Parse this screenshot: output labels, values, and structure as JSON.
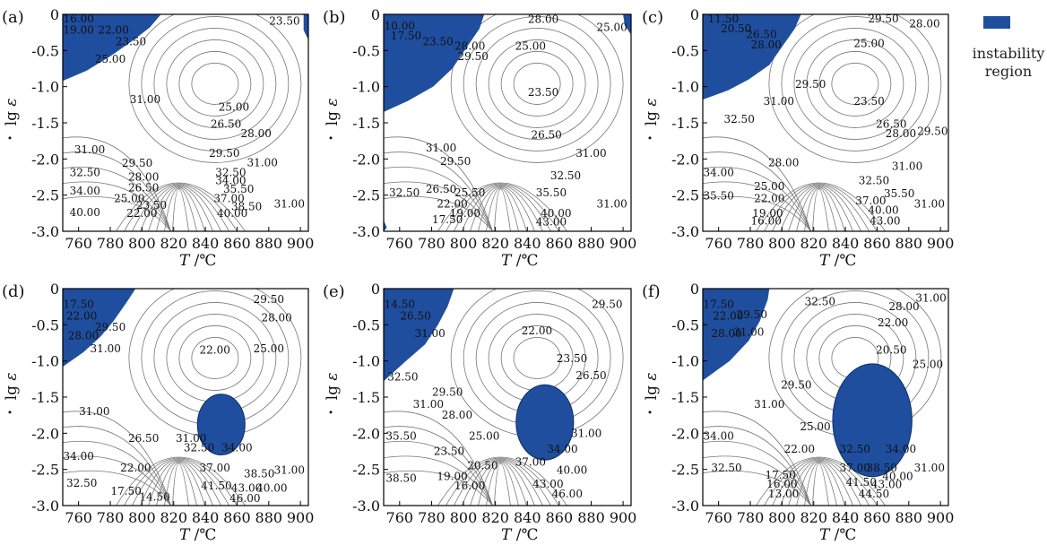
{
  "legend": {
    "label_line1": "instability",
    "label_line2": "region",
    "color": "#1f4e9e"
  },
  "axes": {
    "xlabel_T": "T",
    "xlabel_unit": "/℃",
    "ylabel_lg": "lg",
    "ylabel_symbol": "ε",
    "xticks": [
      "760",
      "780",
      "800",
      "820",
      "840",
      "860",
      "880",
      "900"
    ],
    "xtick_values": [
      760,
      780,
      800,
      820,
      840,
      860,
      880,
      900
    ],
    "yticks": [
      "0",
      "-0.5",
      "-1.0",
      "-1.5",
      "-2.0",
      "-2.5",
      "-3.0"
    ],
    "ytick_values": [
      0,
      -0.5,
      -1.0,
      -1.5,
      -2.0,
      -2.5,
      -3.0
    ],
    "xlim": [
      750,
      905
    ],
    "ylim": [
      -3.0,
      0.0
    ]
  },
  "chart_data": [
    {
      "type": "contour",
      "panel": "(a)",
      "xlim": [
        750,
        905
      ],
      "ylim": [
        -3.0,
        0.0
      ],
      "contour_labels": [
        {
          "text": "16.00",
          "x": 760,
          "y": -0.06
        },
        {
          "text": "19.00",
          "x": 760,
          "y": -0.22
        },
        {
          "text": "22.00",
          "x": 782,
          "y": -0.22
        },
        {
          "text": "23.50",
          "x": 793,
          "y": -0.38
        },
        {
          "text": "25.00",
          "x": 780,
          "y": -0.62
        },
        {
          "text": "23.50",
          "x": 890,
          "y": -0.09
        },
        {
          "text": "31.00",
          "x": 802,
          "y": -1.18
        },
        {
          "text": "25.00",
          "x": 858,
          "y": -1.28
        },
        {
          "text": "26.50",
          "x": 853,
          "y": -1.52
        },
        {
          "text": "28.00",
          "x": 872,
          "y": -1.65
        },
        {
          "text": "29.50",
          "x": 852,
          "y": -1.92
        },
        {
          "text": "31.00",
          "x": 876,
          "y": -2.05
        },
        {
          "text": "31.00",
          "x": 767,
          "y": -1.87
        },
        {
          "text": "29.50",
          "x": 797,
          "y": -2.06
        },
        {
          "text": "32.50",
          "x": 764,
          "y": -2.19
        },
        {
          "text": "28.00",
          "x": 801,
          "y": -2.25
        },
        {
          "text": "32.50",
          "x": 856,
          "y": -2.19
        },
        {
          "text": "34.00",
          "x": 764,
          "y": -2.44
        },
        {
          "text": "26.50",
          "x": 801,
          "y": -2.4
        },
        {
          "text": "34.00",
          "x": 856,
          "y": -2.3
        },
        {
          "text": "35.50",
          "x": 861,
          "y": -2.42
        },
        {
          "text": "25.00",
          "x": 792,
          "y": -2.55
        },
        {
          "text": "37.00",
          "x": 855,
          "y": -2.55
        },
        {
          "text": "23.50",
          "x": 806,
          "y": -2.64
        },
        {
          "text": "38.50",
          "x": 866,
          "y": -2.66
        },
        {
          "text": "31.00",
          "x": 893,
          "y": -2.62
        },
        {
          "text": "40.00",
          "x": 764,
          "y": -2.74
        },
        {
          "text": "22.00",
          "x": 800,
          "y": -2.75
        },
        {
          "text": "40.00",
          "x": 857,
          "y": -2.75
        }
      ]
    },
    {
      "type": "contour",
      "panel": "(b)",
      "xlim": [
        750,
        905
      ],
      "ylim": [
        -3.0,
        0.0
      ],
      "contour_labels": [
        {
          "text": "10.00",
          "x": 760,
          "y": -0.16
        },
        {
          "text": "17.50",
          "x": 764,
          "y": -0.3
        },
        {
          "text": "23.50",
          "x": 784,
          "y": -0.38
        },
        {
          "text": "28.00",
          "x": 804,
          "y": -0.44
        },
        {
          "text": "29.50",
          "x": 806,
          "y": -0.58
        },
        {
          "text": "28.00",
          "x": 850,
          "y": -0.07
        },
        {
          "text": "25.00",
          "x": 893,
          "y": -0.18
        },
        {
          "text": "25.00",
          "x": 842,
          "y": -0.44
        },
        {
          "text": "23.50",
          "x": 850,
          "y": -1.08
        },
        {
          "text": "26.50",
          "x": 852,
          "y": -1.67
        },
        {
          "text": "31.00",
          "x": 786,
          "y": -1.85
        },
        {
          "text": "31.00",
          "x": 880,
          "y": -1.92
        },
        {
          "text": "29.50",
          "x": 795,
          "y": -2.03
        },
        {
          "text": "32.50",
          "x": 864,
          "y": -2.23
        },
        {
          "text": "32.50",
          "x": 763,
          "y": -2.47
        },
        {
          "text": "26.50",
          "x": 786,
          "y": -2.42
        },
        {
          "text": "25.50",
          "x": 804,
          "y": -2.47
        },
        {
          "text": "35.50",
          "x": 855,
          "y": -2.47
        },
        {
          "text": "22.00",
          "x": 793,
          "y": -2.62
        },
        {
          "text": "31.00",
          "x": 893,
          "y": -2.62
        },
        {
          "text": "19.00",
          "x": 801,
          "y": -2.75
        },
        {
          "text": "40.00",
          "x": 858,
          "y": -2.75
        },
        {
          "text": "17.50",
          "x": 790,
          "y": -2.84
        },
        {
          "text": "43.00",
          "x": 855,
          "y": -2.87
        }
      ]
    },
    {
      "type": "contour",
      "panel": "(c)",
      "xlim": [
        750,
        905
      ],
      "ylim": [
        -3.0,
        0.0
      ],
      "contour_labels": [
        {
          "text": "11.50",
          "x": 763,
          "y": -0.06
        },
        {
          "text": "20.50",
          "x": 771,
          "y": -0.2
        },
        {
          "text": "26.50",
          "x": 787,
          "y": -0.28
        },
        {
          "text": "28.00",
          "x": 790,
          "y": -0.42
        },
        {
          "text": "29.50",
          "x": 864,
          "y": -0.06
        },
        {
          "text": "28.00",
          "x": 890,
          "y": -0.13
        },
        {
          "text": "25.00",
          "x": 855,
          "y": -0.4
        },
        {
          "text": "29.50",
          "x": 818,
          "y": -0.97
        },
        {
          "text": "31.00",
          "x": 798,
          "y": -1.2
        },
        {
          "text": "23.50",
          "x": 855,
          "y": -1.2
        },
        {
          "text": "32.50",
          "x": 773,
          "y": -1.45
        },
        {
          "text": "26.50",
          "x": 869,
          "y": -1.52
        },
        {
          "text": "28.00",
          "x": 875,
          "y": -1.65
        },
        {
          "text": "29.50",
          "x": 895,
          "y": -1.62
        },
        {
          "text": "28.00",
          "x": 801,
          "y": -2.05
        },
        {
          "text": "31.00",
          "x": 879,
          "y": -2.1
        },
        {
          "text": "34.00",
          "x": 760,
          "y": -2.19
        },
        {
          "text": "32.50",
          "x": 858,
          "y": -2.3
        },
        {
          "text": "25.00",
          "x": 792,
          "y": -2.38
        },
        {
          "text": "35.50",
          "x": 874,
          "y": -2.48
        },
        {
          "text": "35.50",
          "x": 760,
          "y": -2.51
        },
        {
          "text": "22.00",
          "x": 792,
          "y": -2.55
        },
        {
          "text": "37.00",
          "x": 856,
          "y": -2.58
        },
        {
          "text": "31.00",
          "x": 893,
          "y": -2.62
        },
        {
          "text": "19.00",
          "x": 791,
          "y": -2.75
        },
        {
          "text": "40.00",
          "x": 864,
          "y": -2.71
        },
        {
          "text": "16.00",
          "x": 790,
          "y": -2.86
        },
        {
          "text": "43.00",
          "x": 865,
          "y": -2.86
        }
      ]
    },
    {
      "type": "contour",
      "panel": "(d)",
      "xlim": [
        750,
        905
      ],
      "ylim": [
        -3.0,
        0.0
      ],
      "contour_labels": [
        {
          "text": "17.50",
          "x": 760,
          "y": -0.22
        },
        {
          "text": "22.00",
          "x": 762,
          "y": -0.38
        },
        {
          "text": "29.50",
          "x": 780,
          "y": -0.53
        },
        {
          "text": "28.00",
          "x": 763,
          "y": -0.65
        },
        {
          "text": "31.00",
          "x": 777,
          "y": -0.83
        },
        {
          "text": "29.50",
          "x": 880,
          "y": -0.15
        },
        {
          "text": "28.00",
          "x": 885,
          "y": -0.4
        },
        {
          "text": "22.00",
          "x": 846,
          "y": -0.85
        },
        {
          "text": "25.00",
          "x": 880,
          "y": -0.83
        },
        {
          "text": "31.00",
          "x": 770,
          "y": -1.7
        },
        {
          "text": "26.50",
          "x": 801,
          "y": -2.07
        },
        {
          "text": "31.00",
          "x": 831,
          "y": -2.07
        },
        {
          "text": "32.50",
          "x": 836,
          "y": -2.2
        },
        {
          "text": "34.00",
          "x": 860,
          "y": -2.2
        },
        {
          "text": "34.00",
          "x": 760,
          "y": -2.32
        },
        {
          "text": "22.00",
          "x": 796,
          "y": -2.48
        },
        {
          "text": "37.00",
          "x": 846,
          "y": -2.48
        },
        {
          "text": "38.50",
          "x": 874,
          "y": -2.56
        },
        {
          "text": "31.00",
          "x": 893,
          "y": -2.51
        },
        {
          "text": "32.50",
          "x": 762,
          "y": -2.69
        },
        {
          "text": "41.50",
          "x": 847,
          "y": -2.73
        },
        {
          "text": "43.00",
          "x": 866,
          "y": -2.76
        },
        {
          "text": "40.00",
          "x": 882,
          "y": -2.76
        },
        {
          "text": "17.50",
          "x": 790,
          "y": -2.8
        },
        {
          "text": "14.50",
          "x": 808,
          "y": -2.88
        },
        {
          "text": "46.00",
          "x": 865,
          "y": -2.9
        }
      ]
    },
    {
      "type": "contour",
      "panel": "(e)",
      "xlim": [
        750,
        905
      ],
      "ylim": [
        -3.0,
        0.0
      ],
      "contour_labels": [
        {
          "text": "14.50",
          "x": 760,
          "y": -0.22
        },
        {
          "text": "26.50",
          "x": 770,
          "y": -0.38
        },
        {
          "text": "31.00",
          "x": 779,
          "y": -0.62
        },
        {
          "text": "29.50",
          "x": 890,
          "y": -0.22
        },
        {
          "text": "22.00",
          "x": 846,
          "y": -0.58
        },
        {
          "text": "23.50",
          "x": 868,
          "y": -0.97
        },
        {
          "text": "32.50",
          "x": 762,
          "y": -1.22
        },
        {
          "text": "26.50",
          "x": 880,
          "y": -1.2
        },
        {
          "text": "29.50",
          "x": 790,
          "y": -1.43
        },
        {
          "text": "31.00",
          "x": 778,
          "y": -1.6
        },
        {
          "text": "28.00",
          "x": 796,
          "y": -1.75
        },
        {
          "text": "31.00",
          "x": 877,
          "y": -2.0
        },
        {
          "text": "35.50",
          "x": 761,
          "y": -2.04
        },
        {
          "text": "25.00",
          "x": 813,
          "y": -2.04
        },
        {
          "text": "34.00",
          "x": 862,
          "y": -2.22
        },
        {
          "text": "23.50",
          "x": 791,
          "y": -2.25
        },
        {
          "text": "20.50",
          "x": 812,
          "y": -2.45
        },
        {
          "text": "37.00",
          "x": 842,
          "y": -2.4
        },
        {
          "text": "40.00",
          "x": 868,
          "y": -2.51
        },
        {
          "text": "38.50",
          "x": 761,
          "y": -2.62
        },
        {
          "text": "19.00",
          "x": 793,
          "y": -2.6
        },
        {
          "text": "16.00",
          "x": 804,
          "y": -2.73
        },
        {
          "text": "43.00",
          "x": 853,
          "y": -2.7
        },
        {
          "text": "46.00",
          "x": 865,
          "y": -2.84
        }
      ]
    },
    {
      "type": "contour",
      "panel": "(f)",
      "xlim": [
        750,
        905
      ],
      "ylim": [
        -3.0,
        0.0
      ],
      "contour_labels": [
        {
          "text": "17.50",
          "x": 760,
          "y": -0.22
        },
        {
          "text": "22.00",
          "x": 766,
          "y": -0.38
        },
        {
          "text": "29.50",
          "x": 781,
          "y": -0.36
        },
        {
          "text": "28.00",
          "x": 765,
          "y": -0.62
        },
        {
          "text": "31.00",
          "x": 779,
          "y": -0.6
        },
        {
          "text": "32.50",
          "x": 824,
          "y": -0.18
        },
        {
          "text": "31.00",
          "x": 894,
          "y": -0.13
        },
        {
          "text": "28.00",
          "x": 877,
          "y": -0.25
        },
        {
          "text": "22.00",
          "x": 870,
          "y": -0.47
        },
        {
          "text": "20.50",
          "x": 869,
          "y": -0.85
        },
        {
          "text": "25.00",
          "x": 892,
          "y": -1.05
        },
        {
          "text": "29.50",
          "x": 809,
          "y": -1.33
        },
        {
          "text": "31.00",
          "x": 792,
          "y": -1.6
        },
        {
          "text": "25.00",
          "x": 821,
          "y": -1.91
        },
        {
          "text": "34.00",
          "x": 760,
          "y": -2.04
        },
        {
          "text": "22.00",
          "x": 811,
          "y": -2.22
        },
        {
          "text": "32.50",
          "x": 846,
          "y": -2.22
        },
        {
          "text": "34.00",
          "x": 875,
          "y": -2.22
        },
        {
          "text": "32.50",
          "x": 765,
          "y": -2.48
        },
        {
          "text": "37.00",
          "x": 846,
          "y": -2.48
        },
        {
          "text": "38.50",
          "x": 863,
          "y": -2.48
        },
        {
          "text": "31.00",
          "x": 893,
          "y": -2.48
        },
        {
          "text": "17.50",
          "x": 799,
          "y": -2.58
        },
        {
          "text": "40.00",
          "x": 873,
          "y": -2.6
        },
        {
          "text": "16.00",
          "x": 800,
          "y": -2.7
        },
        {
          "text": "41.50",
          "x": 850,
          "y": -2.68
        },
        {
          "text": "43.00",
          "x": 866,
          "y": -2.71
        },
        {
          "text": "13.00",
          "x": 801,
          "y": -2.84
        },
        {
          "text": "44.50",
          "x": 858,
          "y": -2.84
        }
      ]
    }
  ]
}
